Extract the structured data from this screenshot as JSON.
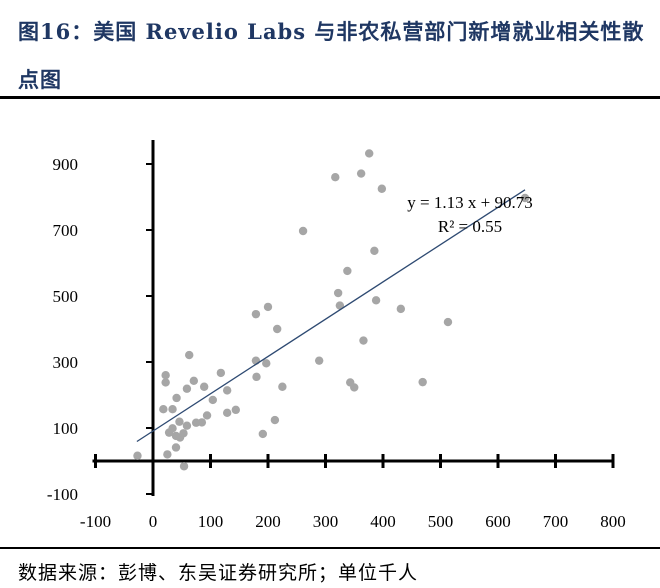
{
  "title": "图16：美国 Revelio Labs 与非农私营部门新增就业相关性散点图",
  "source": "数据来源：彭博、东吴证券研究所；单位千人",
  "chart_data": {
    "type": "scatter",
    "title": "美国 Revelio Labs 与非农私营部门新增就业相关性散点图",
    "xlabel": "",
    "ylabel": "",
    "xlim": [
      -100,
      800
    ],
    "ylim": [
      -100,
      950
    ],
    "x_ticks": [
      "-100",
      "0",
      "100",
      "200",
      "300",
      "400",
      "500",
      "600",
      "700",
      "800"
    ],
    "y_ticks": [
      "900",
      "700",
      "500",
      "300",
      "100",
      "-100"
    ],
    "point_color": "#a6a6a6",
    "trend_color": "#2e4a72",
    "trendline": {
      "slope": 1.13,
      "intercept": 90.73,
      "x_range": [
        -28,
        647
      ],
      "equation": "y = 1.13 x + 90.73",
      "r2": "R² = 0.55"
    },
    "points": [
      [
        -27,
        16
      ],
      [
        25,
        20
      ],
      [
        54,
        -16
      ],
      [
        40,
        41
      ],
      [
        28,
        86
      ],
      [
        34,
        99
      ],
      [
        40,
        76
      ],
      [
        47,
        71
      ],
      [
        53,
        84
      ],
      [
        59,
        107
      ],
      [
        46,
        119
      ],
      [
        75,
        116
      ],
      [
        85,
        117
      ],
      [
        94,
        138
      ],
      [
        104,
        185
      ],
      [
        129,
        146
      ],
      [
        144,
        155
      ],
      [
        18,
        157
      ],
      [
        34,
        157
      ],
      [
        41,
        191
      ],
      [
        59,
        219
      ],
      [
        71,
        243
      ],
      [
        89,
        225
      ],
      [
        22,
        238
      ],
      [
        22,
        260
      ],
      [
        63,
        321
      ],
      [
        118,
        267
      ],
      [
        129,
        214
      ],
      [
        179,
        304
      ],
      [
        197,
        296
      ],
      [
        180,
        255
      ],
      [
        225,
        225
      ],
      [
        212,
        124
      ],
      [
        191,
        82
      ],
      [
        376,
        932
      ],
      [
        317,
        860
      ],
      [
        362,
        871
      ],
      [
        398,
        825
      ],
      [
        647,
        797
      ],
      [
        261,
        697
      ],
      [
        385,
        637
      ],
      [
        338,
        576
      ],
      [
        322,
        509
      ],
      [
        325,
        471
      ],
      [
        388,
        487
      ],
      [
        431,
        461
      ],
      [
        513,
        421
      ],
      [
        200,
        467
      ],
      [
        179,
        445
      ],
      [
        216,
        400
      ],
      [
        366,
        365
      ],
      [
        289,
        304
      ],
      [
        469,
        239
      ],
      [
        343,
        238
      ],
      [
        350,
        223
      ]
    ]
  }
}
